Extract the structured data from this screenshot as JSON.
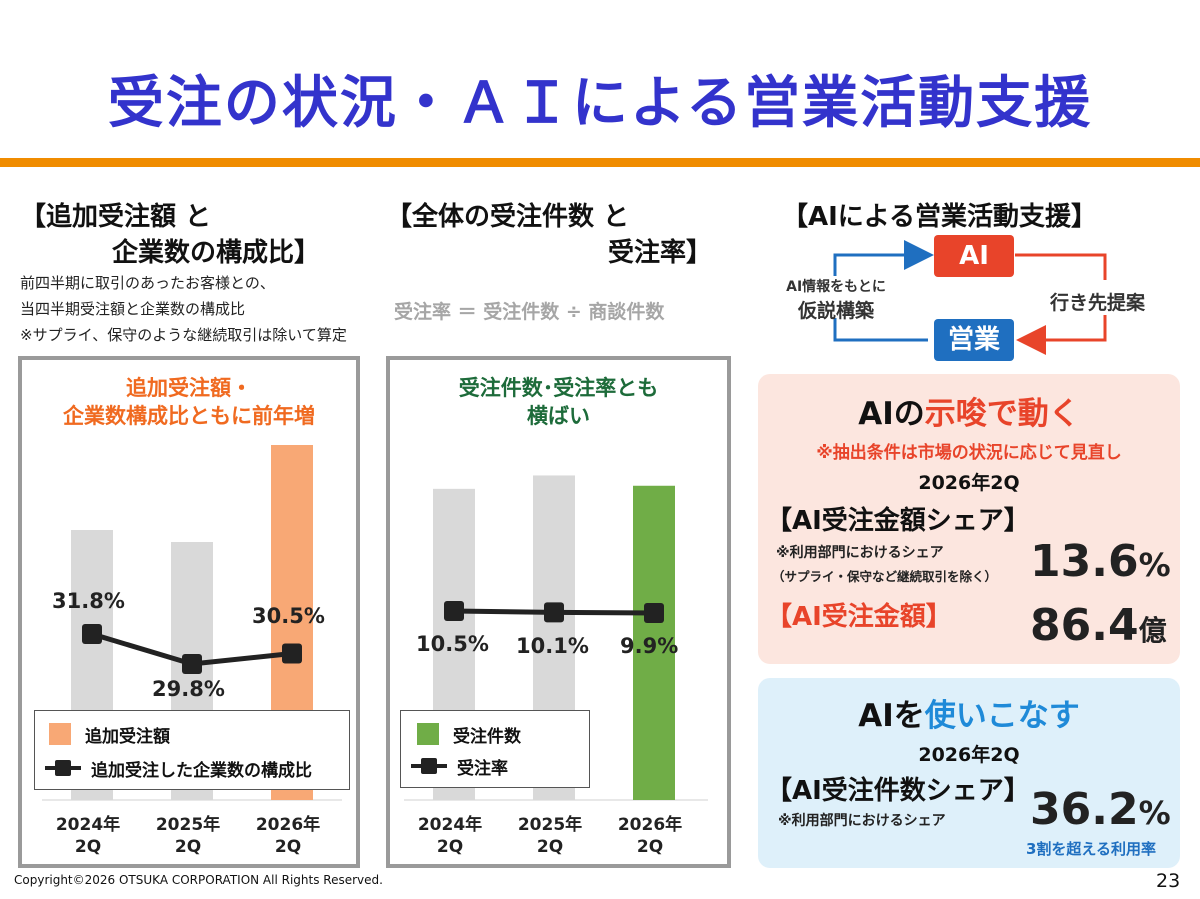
{
  "title": "受注の状況・ＡＩによる営業活動支援",
  "left": {
    "heading_line1": "【追加受注額 と",
    "heading_line2": "企業数の構成比】",
    "notes": [
      "前四半期に取引のあったお客様との、",
      "当四半期受注額と企業数の構成比",
      "※サプライ、保守のような継続取引は除いて算定"
    ],
    "panel_headline_1": "追加受注額・",
    "panel_headline_2": "企業数構成比ともに前年増",
    "legend_bar": "追加受注額",
    "legend_line": "追加受注した企業数の構成比"
  },
  "middle": {
    "heading_line1": "【全体の受注件数 と",
    "heading_line2": "受注率】",
    "formula": "受注率 ＝ 受注件数 ÷ 商談件数",
    "panel_headline_1": "受注件数･受注率とも",
    "panel_headline_2": "横ばい",
    "legend_bar": "受注件数",
    "legend_line": "受注率"
  },
  "right": {
    "heading": "【AIによる営業活動支援】",
    "ai_box": "AI",
    "sales_box": "営業",
    "left_label_1": "AI情報をもとに",
    "left_label_2": "仮説構築",
    "right_label": "行き先提案",
    "card1": {
      "title_a": "AIの",
      "title_b": "示唆で動く",
      "note": "※抽出条件は市場の状況に応じて見直し",
      "period": "2026年2Q",
      "share_label": "【AI受注金額シェア】",
      "share_note_1": "※利用部門におけるシェア",
      "share_note_2": "（サプライ・保守など継続取引を除く）",
      "share_value": "13.6",
      "share_unit": "%",
      "amount_label": "【AI受注金額】",
      "amount_value": "86.4",
      "amount_unit": "億"
    },
    "card2": {
      "title_a": "AIを",
      "title_b": "使いこなす",
      "period": "2026年2Q",
      "share_label": "【AI受注件数シェア】",
      "share_note": "※利用部門におけるシェア",
      "share_value": "36.2",
      "share_unit": "%",
      "footnote": "3割を超える利用率"
    }
  },
  "footer": {
    "copyright": "Copyright©2026 OTSUKA CORPORATION All Rights Reserved.",
    "page_number": "23"
  },
  "colors": {
    "title": "#3333cc",
    "accent_bar": "#f08c00",
    "orange_bar": "#f8a875",
    "green_bar": "#70ad47",
    "gray_bar": "#d9d9d9",
    "ai_red": "#e8442a",
    "sales_blue": "#1f6fc0"
  },
  "chart_data": [
    {
      "type": "bar",
      "categories": [
        "2024年\n2Q",
        "2025年\n2Q",
        "2026年\n2Q"
      ],
      "series": [
        {
          "name": "追加受注額",
          "type": "bar",
          "values": [
            270,
            258,
            355
          ]
        },
        {
          "name": "追加受注した企業数の構成比",
          "type": "line",
          "values": [
            31.8,
            29.8,
            30.5
          ],
          "labels": [
            "31.8%",
            "29.8%",
            "30.5%"
          ]
        }
      ]
    },
    {
      "type": "bar",
      "categories": [
        "2024年\n2Q",
        "2025年\n2Q",
        "2026年\n2Q"
      ],
      "series": [
        {
          "name": "受注件数",
          "type": "bar",
          "values": [
            302,
            315,
            305
          ]
        },
        {
          "name": "受注率",
          "type": "line",
          "values": [
            10.5,
            10.1,
            9.9
          ],
          "labels": [
            "10.5%",
            "10.1%",
            "9.9%"
          ]
        }
      ]
    }
  ]
}
